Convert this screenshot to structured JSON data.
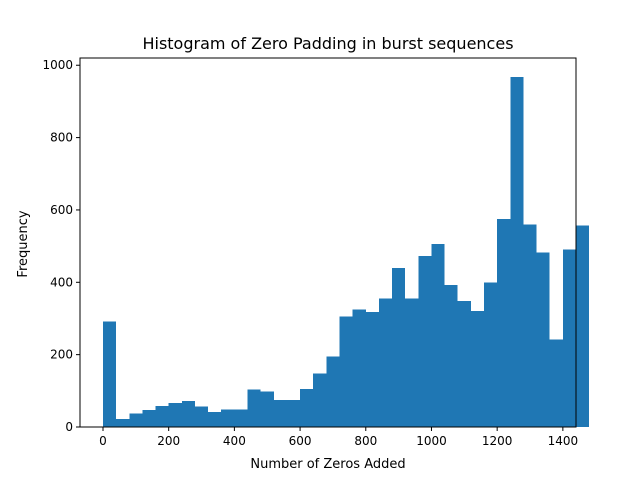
{
  "chart_data": {
    "type": "bar",
    "title": "Histogram of Zero Padding in burst sequences",
    "xlabel": "Number of Zeros Added",
    "ylabel": "Frequency",
    "xlim": [
      -70,
      1440
    ],
    "ylim": [
      0,
      1020
    ],
    "xticks": [
      0,
      200,
      400,
      600,
      800,
      1000,
      1200,
      1400
    ],
    "yticks": [
      0,
      200,
      400,
      600,
      800,
      1000
    ],
    "grid": false,
    "bar_color": "#1f77b4",
    "bins": {
      "start": 0,
      "width": 40,
      "values": [
        292,
        22,
        38,
        47,
        58,
        66,
        72,
        56,
        42,
        48,
        48,
        103,
        98,
        75,
        75,
        105,
        148,
        195,
        306,
        325,
        318,
        355,
        440,
        355,
        473,
        506,
        393,
        348,
        320,
        400,
        575,
        968,
        560,
        482,
        242,
        490,
        557
      ]
    }
  }
}
